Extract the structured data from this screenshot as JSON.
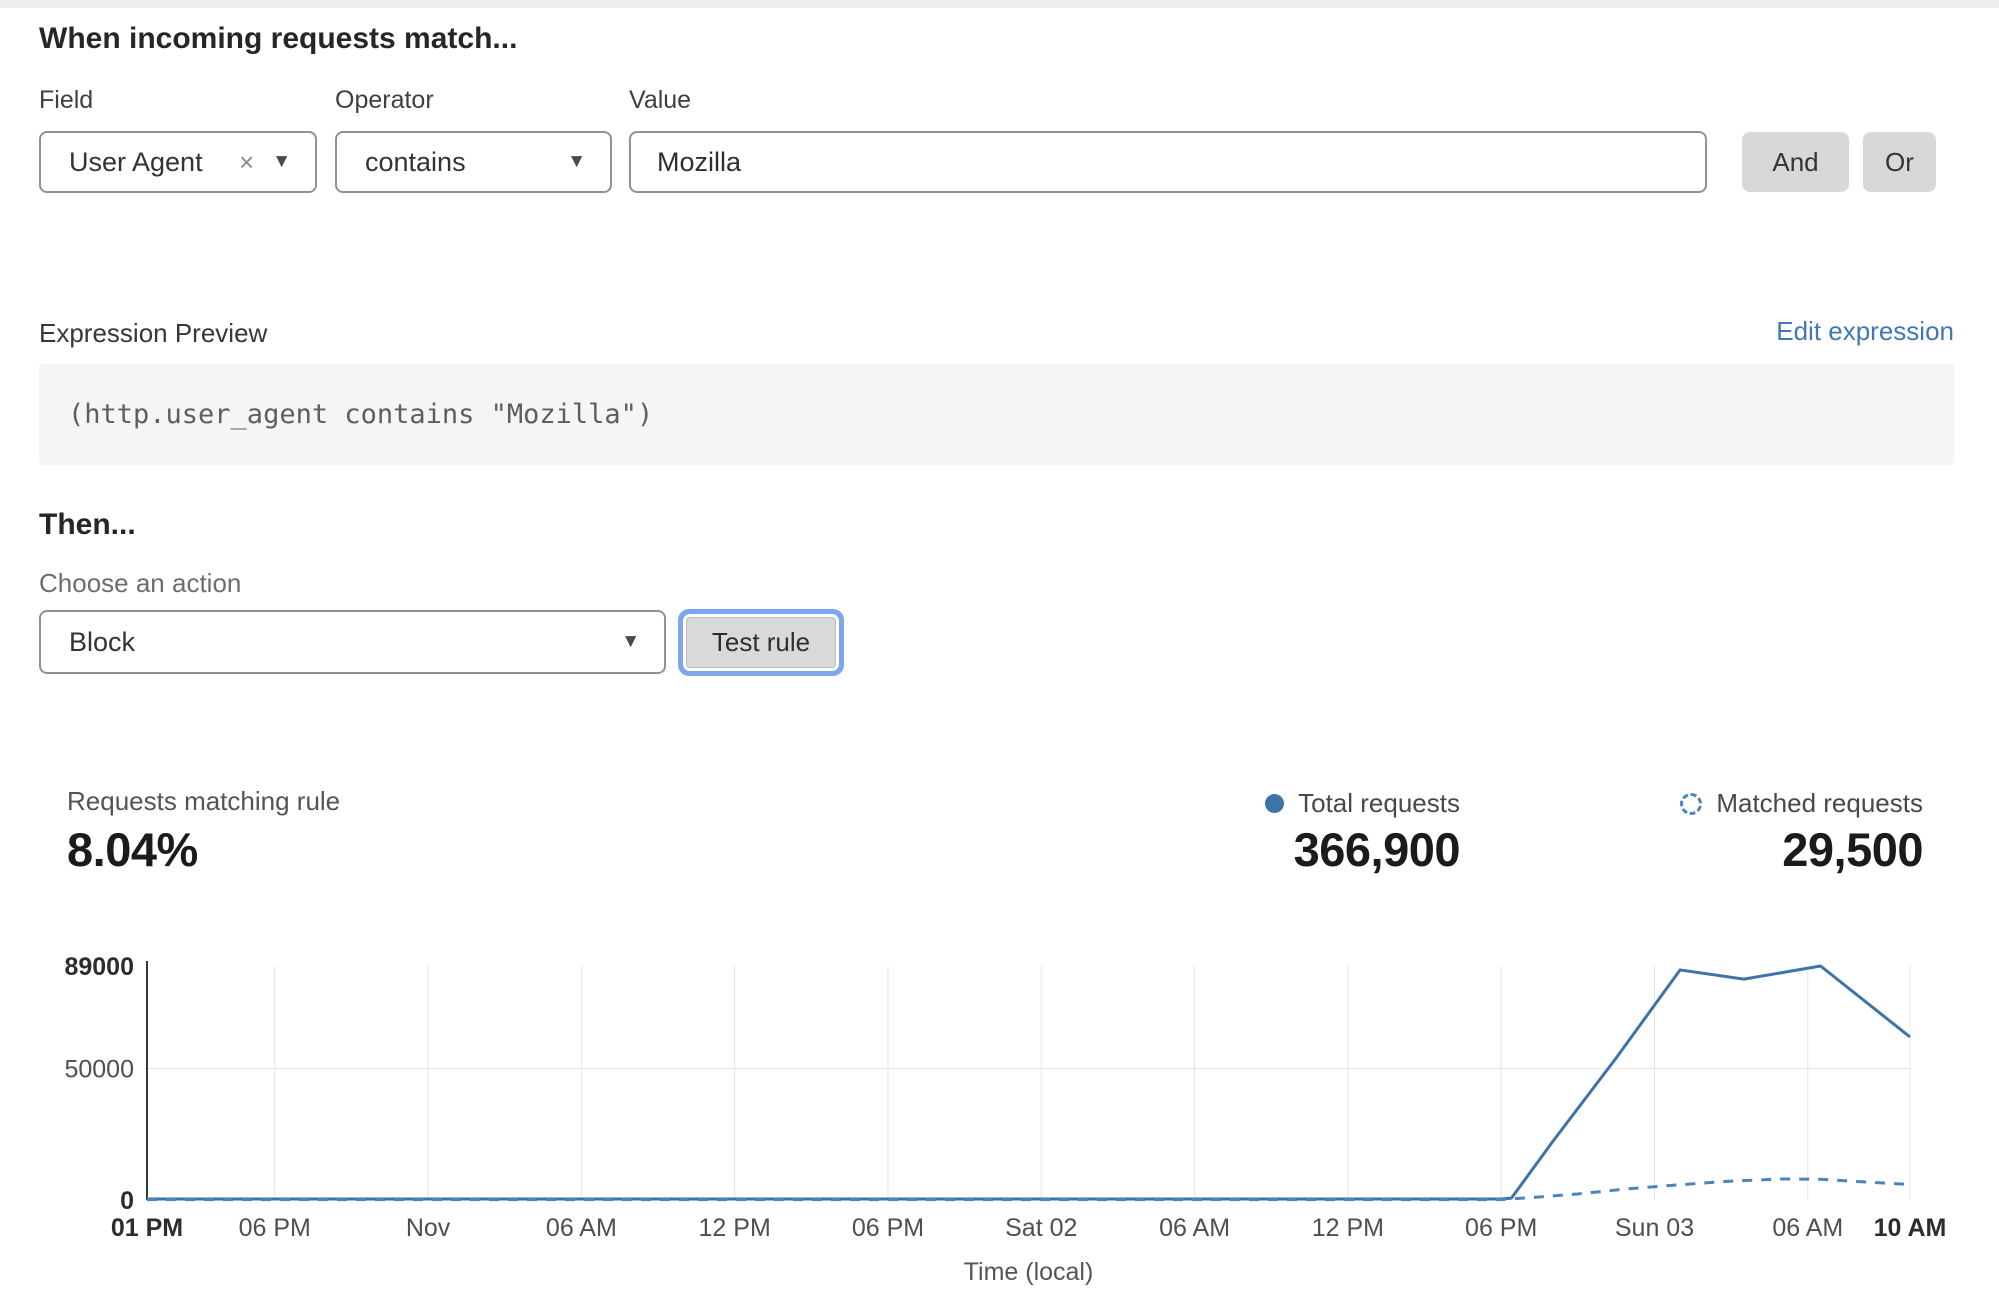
{
  "match_builder": {
    "heading": "When incoming requests match...",
    "field": {
      "label": "Field",
      "value": "User Agent",
      "clear_icon": "×",
      "caret_icon": "▼"
    },
    "operator": {
      "label": "Operator",
      "value": "contains",
      "caret_icon": "▼"
    },
    "value": {
      "label": "Value",
      "value": "Mozilla"
    },
    "and_label": "And",
    "or_label": "Or"
  },
  "expression": {
    "label": "Expression Preview",
    "edit_link": "Edit expression",
    "code": "(http.user_agent contains \"Mozilla\")"
  },
  "action": {
    "heading": "Then...",
    "choose_label": "Choose an action",
    "value": "Block",
    "caret_icon": "▼",
    "test_button": "Test rule"
  },
  "stats": {
    "match_label": "Requests matching rule",
    "match_value": "8.04%",
    "total": {
      "label": "Total requests",
      "value": "366,900",
      "icon": "solid-dot"
    },
    "matched": {
      "label": "Matched requests",
      "value": "29,500",
      "icon": "dashed-circle"
    }
  },
  "chart_data": {
    "type": "line",
    "title": "",
    "xlabel": "Time (local)",
    "ylabel": "",
    "ylim": [
      0,
      89000
    ],
    "x_range_hours": [
      0,
      69
    ],
    "grid": true,
    "grid_color": "#e4e4e4",
    "axis_color": "#3a3a3a",
    "legend_position": "top-right",
    "y_ticks": [
      {
        "label": "89000",
        "value": 89000,
        "bold": true
      },
      {
        "label": "50000",
        "value": 50000,
        "bold": false
      },
      {
        "label": "0",
        "value": 0,
        "bold": true
      }
    ],
    "y_gridlines": [
      50000
    ],
    "x_ticks": [
      {
        "label": "01 PM",
        "hour": 0,
        "bold": true
      },
      {
        "label": "06 PM",
        "hour": 5,
        "bold": false
      },
      {
        "label": "Nov",
        "hour": 11,
        "bold": false
      },
      {
        "label": "06 AM",
        "hour": 17,
        "bold": false
      },
      {
        "label": "12 PM",
        "hour": 23,
        "bold": false
      },
      {
        "label": "06 PM",
        "hour": 29,
        "bold": false
      },
      {
        "label": "Sat 02",
        "hour": 35,
        "bold": false
      },
      {
        "label": "06 AM",
        "hour": 41,
        "bold": false
      },
      {
        "label": "12 PM",
        "hour": 47,
        "bold": false
      },
      {
        "label": "06 PM",
        "hour": 53,
        "bold": false
      },
      {
        "label": "Sun 03",
        "hour": 59,
        "bold": false
      },
      {
        "label": "06 AM",
        "hour": 65,
        "bold": false
      },
      {
        "label": "10 AM",
        "hour": 69,
        "bold": true
      }
    ],
    "series": [
      {
        "name": "Total requests",
        "style": "solid",
        "color": "#3e73a8",
        "points": [
          [
            0,
            400
          ],
          [
            6,
            400
          ],
          [
            12,
            400
          ],
          [
            18,
            400
          ],
          [
            24,
            400
          ],
          [
            30,
            400
          ],
          [
            36,
            400
          ],
          [
            42,
            400
          ],
          [
            48,
            400
          ],
          [
            53,
            400
          ],
          [
            53.4,
            700
          ],
          [
            55,
            22000
          ],
          [
            57.5,
            54000
          ],
          [
            60,
            87500
          ],
          [
            62.5,
            84000
          ],
          [
            65.5,
            89000
          ],
          [
            69,
            62000
          ]
        ]
      },
      {
        "name": "Matched requests",
        "style": "dashed",
        "color": "#4e84bd",
        "points": [
          [
            0,
            150
          ],
          [
            6,
            150
          ],
          [
            12,
            150
          ],
          [
            18,
            150
          ],
          [
            24,
            150
          ],
          [
            30,
            150
          ],
          [
            36,
            150
          ],
          [
            42,
            150
          ],
          [
            48,
            150
          ],
          [
            53,
            150
          ],
          [
            54,
            800
          ],
          [
            56,
            2300
          ],
          [
            58,
            4300
          ],
          [
            60,
            5800
          ],
          [
            62,
            7200
          ],
          [
            64,
            8000
          ],
          [
            65.5,
            7900
          ],
          [
            67,
            7000
          ],
          [
            69,
            5900
          ]
        ]
      }
    ]
  }
}
